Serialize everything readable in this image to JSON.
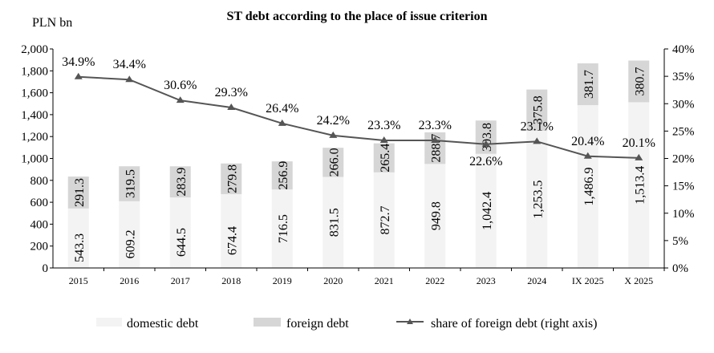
{
  "chart_data": {
    "type": "bar",
    "stacked": true,
    "title": "ST debt according to the place of issue criterion",
    "ylabel": "PLN bn",
    "categories": [
      "2015",
      "2016",
      "2017",
      "2018",
      "2019",
      "2020",
      "2021",
      "2022",
      "2023",
      "2024",
      "IX 2025",
      "X 2025"
    ],
    "series": [
      {
        "name": "domestic debt",
        "type": "bar",
        "axis": "left",
        "color": "#f3f3f3",
        "values": [
          543.3,
          609.2,
          644.5,
          674.4,
          716.5,
          831.5,
          872.7,
          949.8,
          1042.4,
          1253.5,
          1486.9,
          1513.4
        ],
        "labels": [
          "543.3",
          "609.2",
          "644.5",
          "674.4",
          "716.5",
          "831.5",
          "872.7",
          "949.8",
          "1,042.4",
          "1,253.5",
          "1,486.9",
          "1,513.4"
        ]
      },
      {
        "name": "foreign debt",
        "type": "bar",
        "axis": "left",
        "color": "#d6d6d6",
        "values": [
          291.3,
          319.5,
          283.9,
          279.8,
          256.9,
          266.0,
          265.4,
          288.7,
          303.8,
          375.8,
          381.7,
          380.7
        ],
        "labels": [
          "291.3",
          "319.5",
          "283.9",
          "279.8",
          "256.9",
          "266.0",
          "265.4",
          "288.7",
          "303.8",
          "375.8",
          "381.7",
          "380.7"
        ]
      },
      {
        "name": "share of foreign debt (right axis)",
        "type": "line",
        "axis": "right",
        "color": "#555555",
        "marker": "triangle",
        "values": [
          34.9,
          34.4,
          30.6,
          29.3,
          26.4,
          24.2,
          23.3,
          23.3,
          22.6,
          23.1,
          20.4,
          20.1
        ],
        "labels": [
          "34.9%",
          "34.4%",
          "30.6%",
          "29.3%",
          "26.4%",
          "24.2%",
          "23.3%",
          "23.3%",
          "22.6%",
          "23.1%",
          "20.4%",
          "20.1%"
        ]
      }
    ],
    "ylim": [
      0,
      2000
    ],
    "yticks": [
      "0",
      "200",
      "400",
      "600",
      "800",
      "1,000",
      "1,200",
      "1,400",
      "1,600",
      "1,800",
      "2,000"
    ],
    "y2lim": [
      0,
      40
    ],
    "y2ticks": [
      "0%",
      "5%",
      "10%",
      "15%",
      "20%",
      "25%",
      "30%",
      "35%",
      "40%"
    ],
    "grid": false,
    "legend": "bottom"
  }
}
